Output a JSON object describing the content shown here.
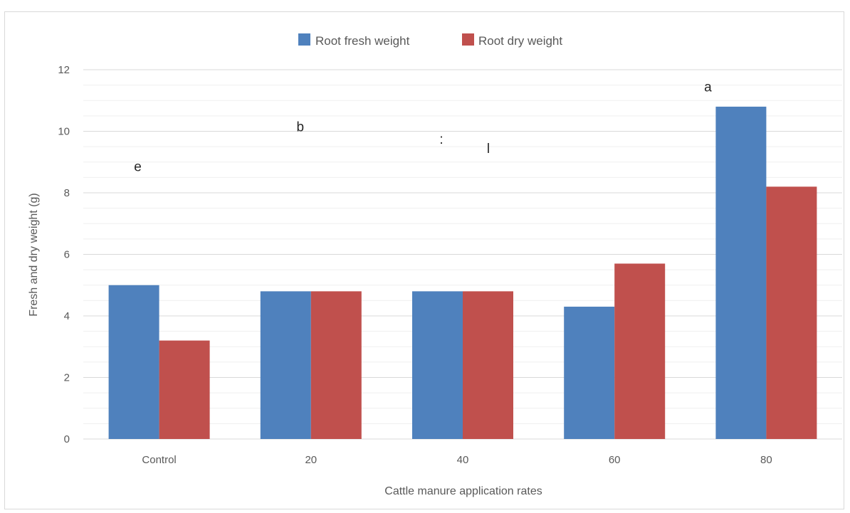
{
  "chart_data": {
    "type": "bar",
    "title": "",
    "xlabel": "Cattle manure application rates",
    "ylabel": "Fresh and dry weight (g)",
    "categories": [
      "Control",
      "20",
      "40",
      "60",
      "80"
    ],
    "series": [
      {
        "name": "Root fresh weight",
        "values": [
          5.0,
          4.8,
          4.8,
          4.3,
          10.8
        ]
      },
      {
        "name": "Root dry weight",
        "values": [
          3.2,
          4.8,
          4.8,
          5.7,
          8.2
        ]
      }
    ],
    "ylim": [
      0,
      12
    ],
    "yticks": [
      0,
      2,
      4,
      6,
      8,
      10,
      12
    ],
    "grid": true,
    "legend_position": "top",
    "annotations": [
      {
        "text": "e",
        "category": "Control",
        "y": 8.7
      },
      {
        "text": "b",
        "category": "20",
        "y": 10.0
      },
      {
        "text": ":",
        "category": "40",
        "y": 9.6
      },
      {
        "text": "l",
        "category": "40",
        "y": 9.3
      },
      {
        "text": "a",
        "category": "80",
        "y": 11.3
      }
    ],
    "colors": {
      "fresh": "#4f81bd",
      "dry": "#c0504d",
      "grid": "#d9d9d9",
      "text": "#595959"
    }
  }
}
